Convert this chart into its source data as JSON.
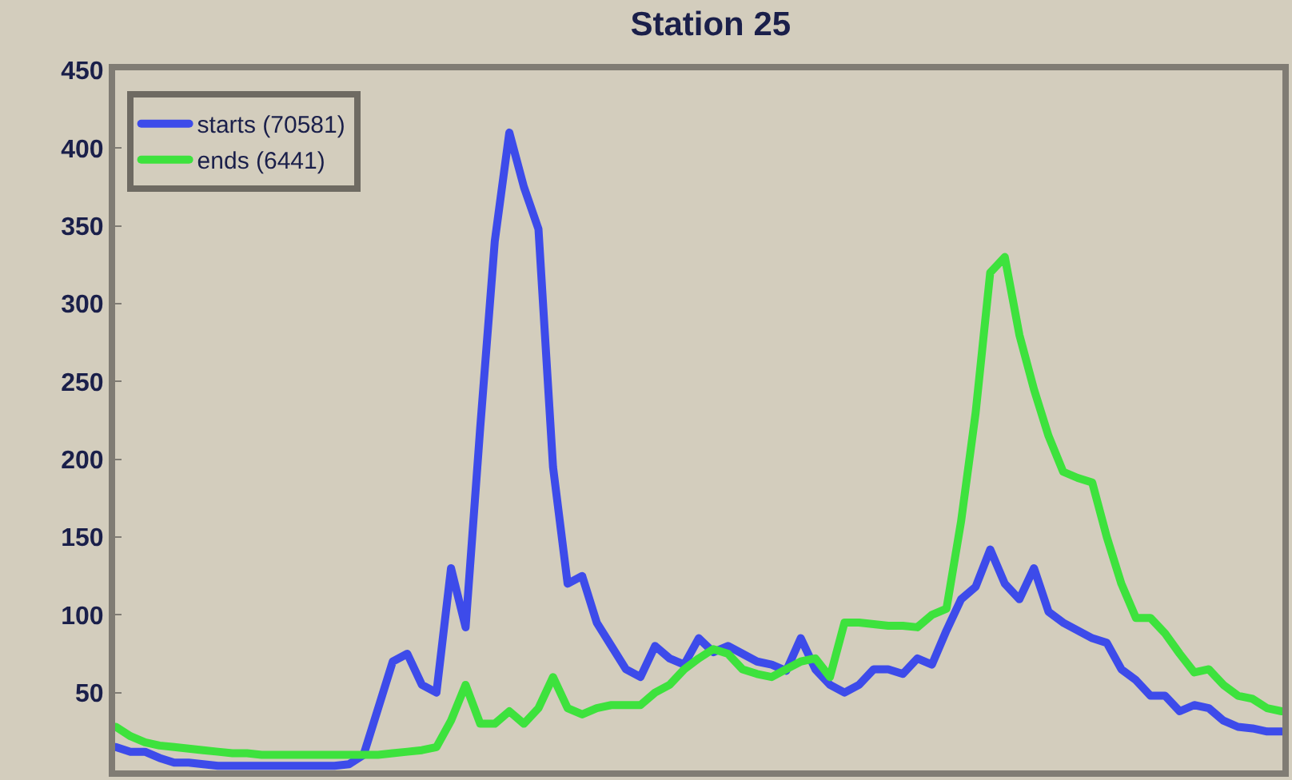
{
  "chart_data": {
    "type": "line",
    "title": "Station 25",
    "categories": [
      null,
      null,
      null,
      null,
      null,
      null,
      null,
      null,
      null,
      null,
      null,
      null,
      null,
      null,
      null,
      null,
      null,
      null,
      null,
      null,
      null,
      null,
      null,
      null,
      null,
      null,
      null,
      null,
      null,
      null,
      null,
      null,
      null,
      null,
      null,
      null,
      null,
      null,
      null,
      null,
      null,
      null,
      null,
      null,
      null,
      null,
      null,
      null,
      null,
      null,
      null,
      null,
      null,
      null,
      null,
      null,
      null,
      null,
      null,
      null,
      null,
      null,
      null,
      null,
      null,
      null,
      null,
      null,
      null,
      null,
      null,
      null,
      null,
      null,
      null,
      null,
      null,
      null,
      null,
      null,
      null
    ],
    "series": [
      {
        "name": "starts (70581)",
        "color": "#3d4bea",
        "values": [
          15,
          12,
          12,
          8,
          5,
          5,
          4,
          3,
          3,
          3,
          3,
          3,
          3,
          3,
          3,
          3,
          4,
          10,
          40,
          70,
          75,
          55,
          50,
          130,
          92,
          220,
          340,
          410,
          375,
          348,
          195,
          120,
          125,
          95,
          80,
          65,
          60,
          80,
          72,
          68,
          85,
          76,
          80,
          75,
          70,
          68,
          64,
          85,
          65,
          55,
          50,
          55,
          65,
          65,
          62,
          72,
          68,
          90,
          110,
          118,
          142,
          120,
          110,
          130,
          102,
          95,
          90,
          85,
          82,
          65,
          58,
          48,
          48,
          38,
          42,
          40,
          32,
          28,
          27,
          25,
          25
        ]
      },
      {
        "name": "ends (6441)",
        "color": "#3de23d",
        "values": [
          28,
          22,
          18,
          16,
          15,
          14,
          13,
          12,
          11,
          11,
          10,
          10,
          10,
          10,
          10,
          10,
          10,
          10,
          10,
          11,
          12,
          13,
          15,
          32,
          55,
          30,
          30,
          38,
          30,
          40,
          60,
          40,
          36,
          40,
          42,
          42,
          42,
          50,
          55,
          65,
          72,
          78,
          75,
          65,
          62,
          60,
          65,
          70,
          72,
          60,
          95,
          95,
          94,
          93,
          93,
          92,
          100,
          104,
          160,
          230,
          320,
          330,
          280,
          245,
          215,
          192,
          188,
          185,
          150,
          120,
          98,
          98,
          88,
          75,
          63,
          65,
          55,
          48,
          46,
          40,
          38
        ]
      }
    ],
    "ylim": [
      0,
      450
    ],
    "yticks": [
      50,
      100,
      150,
      200,
      250,
      300,
      350,
      400,
      450
    ],
    "tick_labels": "y",
    "grid": false,
    "legend": "top left",
    "marker": "none",
    "line_style": "solid"
  }
}
